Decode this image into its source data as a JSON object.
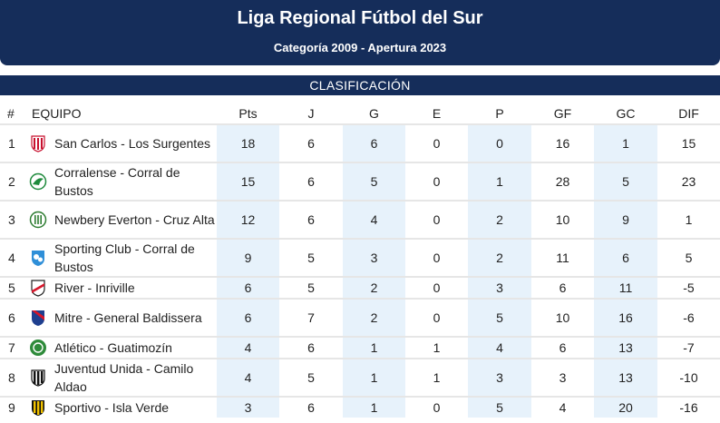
{
  "header": {
    "title": "Liga Regional Fútbol del Sur",
    "subtitle": "Categoría 2009 - Apertura 2023"
  },
  "section": {
    "label": "CLASIFICACIÓN"
  },
  "table": {
    "columns": [
      "#",
      "EQUIPO",
      "Pts",
      "J",
      "G",
      "E",
      "P",
      "GF",
      "GC",
      "DIF"
    ],
    "rows": [
      {
        "pos": "1",
        "team": "San Carlos - Los Surgentes",
        "pts": "18",
        "j": "6",
        "g": "6",
        "e": "0",
        "p": "0",
        "gf": "16",
        "gc": "1",
        "dif": "15",
        "crest": "san-carlos-crest"
      },
      {
        "pos": "2",
        "team": "Corralense - Corral de Bustos",
        "pts": "15",
        "j": "6",
        "g": "5",
        "e": "0",
        "p": "1",
        "gf": "28",
        "gc": "5",
        "dif": "23",
        "crest": "corralense-crest"
      },
      {
        "pos": "3",
        "team": "Newbery Everton - Cruz Alta",
        "pts": "12",
        "j": "6",
        "g": "4",
        "e": "0",
        "p": "2",
        "gf": "10",
        "gc": "9",
        "dif": "1",
        "crest": "newbery-everton-crest"
      },
      {
        "pos": "4",
        "team": "Sporting Club - Corral de Bustos",
        "pts": "9",
        "j": "5",
        "g": "3",
        "e": "0",
        "p": "2",
        "gf": "11",
        "gc": "6",
        "dif": "5",
        "crest": "sporting-club-crest"
      },
      {
        "pos": "5",
        "team": "River - Inriville",
        "pts": "6",
        "j": "5",
        "g": "2",
        "e": "0",
        "p": "3",
        "gf": "6",
        "gc": "11",
        "dif": "-5",
        "crest": "river-crest"
      },
      {
        "pos": "6",
        "team": "Mitre - General Baldissera",
        "pts": "6",
        "j": "7",
        "g": "2",
        "e": "0",
        "p": "5",
        "gf": "10",
        "gc": "16",
        "dif": "-6",
        "crest": "mitre-crest"
      },
      {
        "pos": "7",
        "team": "Atlético - Guatimozín",
        "pts": "4",
        "j": "6",
        "g": "1",
        "e": "1",
        "p": "4",
        "gf": "6",
        "gc": "13",
        "dif": "-7",
        "crest": "atletico-guatimozin-crest"
      },
      {
        "pos": "8",
        "team": "Juventud Unida - Camilo Aldao",
        "pts": "4",
        "j": "5",
        "g": "1",
        "e": "1",
        "p": "3",
        "gf": "3",
        "gc": "13",
        "dif": "-10",
        "crest": "juventud-unida-crest"
      },
      {
        "pos": "9",
        "team": "Sportivo - Isla Verde",
        "pts": "3",
        "j": "6",
        "g": "1",
        "e": "0",
        "p": "5",
        "gf": "4",
        "gc": "20",
        "dif": "-16",
        "crest": "sportivo-crest"
      }
    ]
  },
  "colors": {
    "navy": "#152d5a",
    "shade": "#e7f2fb",
    "divider": "#e6e6e6"
  }
}
